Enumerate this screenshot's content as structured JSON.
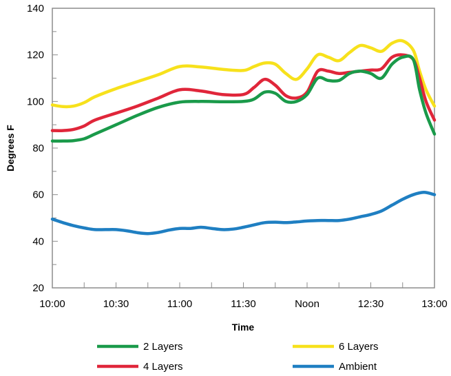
{
  "chart_data": {
    "type": "line",
    "xlabel": "Time",
    "ylabel": "Degrees F",
    "ylim": [
      20,
      140
    ],
    "xlim": [
      0,
      180
    ],
    "y_ticks": [
      20,
      40,
      60,
      80,
      100,
      120,
      140
    ],
    "x_ticks": [
      {
        "value": 0,
        "label": "10:00"
      },
      {
        "value": 30,
        "label": "10:30"
      },
      {
        "value": 60,
        "label": "11:00"
      },
      {
        "value": 90,
        "label": "11:30"
      },
      {
        "value": 120,
        "label": "Noon"
      },
      {
        "value": 150,
        "label": "12:30"
      },
      {
        "value": 180,
        "label": "13:00"
      }
    ],
    "x_minor_step": 15,
    "y_minor_step": 10,
    "grid": false,
    "legend_position": "bottom",
    "series": [
      {
        "name": "2 Layers",
        "color": "#1a9a4a",
        "x": [
          0,
          5,
          10,
          15,
          20,
          30,
          40,
          50,
          60,
          70,
          80,
          90,
          95,
          100,
          105,
          110,
          115,
          120,
          125,
          130,
          135,
          140,
          145,
          150,
          155,
          160,
          165,
          170,
          173,
          176,
          180
        ],
        "y": [
          83,
          83,
          83.2,
          84,
          86,
          90,
          94,
          97.5,
          99.7,
          100,
          99.9,
          100,
          101,
          104,
          103.5,
          100,
          100,
          103,
          110,
          109,
          109,
          112,
          113,
          112,
          110,
          116,
          119,
          118,
          105,
          95,
          86
        ]
      },
      {
        "name": "4 Layers",
        "color": "#e0263a",
        "x": [
          0,
          5,
          10,
          15,
          20,
          30,
          40,
          50,
          60,
          70,
          80,
          90,
          95,
          100,
          105,
          110,
          115,
          120,
          125,
          130,
          135,
          140,
          145,
          150,
          155,
          160,
          165,
          170,
          173,
          176,
          180
        ],
        "y": [
          87.5,
          87.5,
          88,
          89.5,
          92,
          95,
          98,
          101.5,
          105,
          104.5,
          103,
          103,
          106,
          109.5,
          107,
          102.5,
          101.5,
          104,
          113,
          113,
          112,
          112.5,
          113,
          113.5,
          114,
          119,
          120,
          118,
          110,
          100,
          92
        ]
      },
      {
        "name": "6 Layers",
        "color": "#f7e11c",
        "x": [
          0,
          5,
          10,
          15,
          20,
          30,
          40,
          50,
          60,
          70,
          80,
          90,
          95,
          100,
          105,
          110,
          115,
          120,
          125,
          130,
          135,
          140,
          145,
          150,
          155,
          160,
          165,
          170,
          173,
          176,
          180
        ],
        "y": [
          98.5,
          97.8,
          98,
          99.5,
          102,
          105.5,
          108.5,
          111.5,
          115,
          114.8,
          113.8,
          113.3,
          115,
          116.5,
          116,
          112,
          109.5,
          114,
          120,
          119,
          117.5,
          121,
          124,
          123,
          121.5,
          125,
          126,
          122,
          113,
          105,
          98
        ]
      },
      {
        "name": "Ambient",
        "color": "#1f7fc2",
        "x": [
          0,
          5,
          10,
          15,
          20,
          25,
          30,
          35,
          40,
          45,
          50,
          55,
          60,
          65,
          70,
          75,
          80,
          85,
          90,
          95,
          100,
          105,
          110,
          115,
          120,
          125,
          130,
          135,
          140,
          145,
          150,
          155,
          160,
          165,
          170,
          175,
          180
        ],
        "y": [
          49.5,
          48,
          46.7,
          45.7,
          45,
          45,
          45,
          44.5,
          43.7,
          43.3,
          43.8,
          44.8,
          45.5,
          45.5,
          46,
          45.5,
          45,
          45.2,
          46,
          47,
          48,
          48.2,
          48,
          48.3,
          48.7,
          48.9,
          48.9,
          48.9,
          49.5,
          50.5,
          51.5,
          53,
          55.5,
          58,
          60,
          61,
          60
        ]
      }
    ]
  }
}
